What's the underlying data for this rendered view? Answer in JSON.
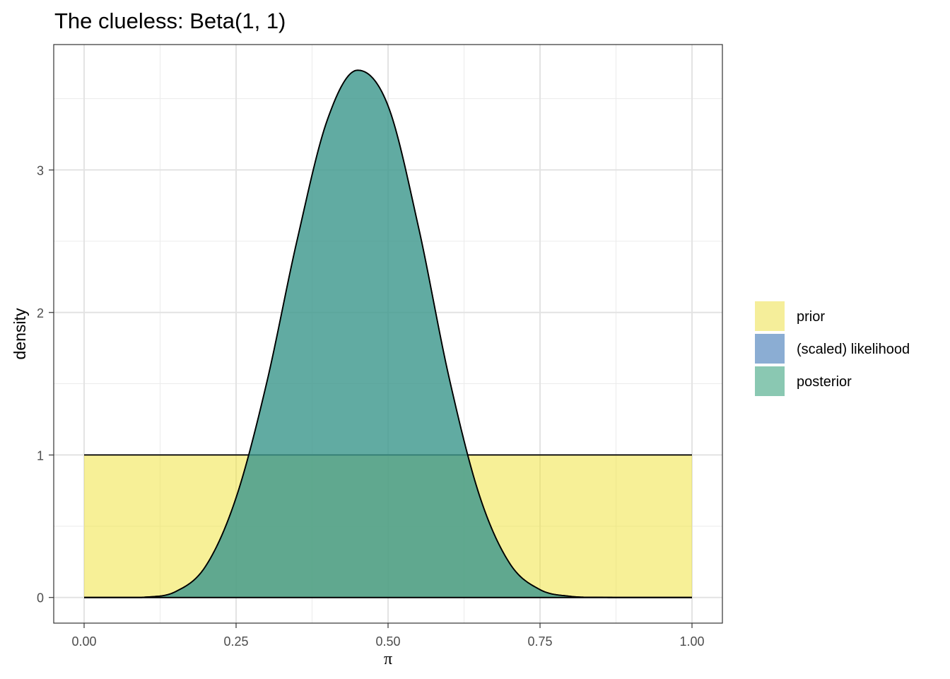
{
  "chart_data": {
    "type": "area",
    "title": "The clueless: Beta(1, 1)",
    "xlabel": "π",
    "ylabel": "density",
    "xlim": [
      -0.05,
      1.05
    ],
    "ylim": [
      -0.18,
      3.88
    ],
    "x_ticks": [
      0,
      0.25,
      0.5,
      0.75,
      1
    ],
    "x_tick_labels": [
      "0.00",
      "0.25",
      "0.50",
      "0.75",
      "1.00"
    ],
    "y_ticks": [
      0,
      1,
      2,
      3
    ],
    "y_tick_labels": [
      "0",
      "1",
      "2",
      "3"
    ],
    "grid": true,
    "legend_position": "right",
    "legend": [
      {
        "label": "prior",
        "color": "#f5ee9a"
      },
      {
        "label": "(scaled) likelihood",
        "color": "#8badd3"
      },
      {
        "label": "posterior",
        "color": "#8ac8b2"
      }
    ],
    "series": [
      {
        "name": "prior",
        "distribution": "Beta(1, 1)",
        "fill": "#f0e442",
        "opacity": 0.55,
        "x": [
          0,
          1
        ],
        "y": [
          1,
          1
        ]
      },
      {
        "name": "(scaled) likelihood",
        "fill": "#4a7fbf",
        "opacity": 0.55,
        "x": [
          0,
          0.05,
          0.1,
          0.15,
          0.2,
          0.25,
          0.3,
          0.35,
          0.4,
          0.45,
          0.5,
          0.55,
          0.6,
          0.65,
          0.7,
          0.75,
          0.8,
          0.85,
          0.9,
          0.95,
          1
        ],
        "y": [
          0,
          0,
          0.002,
          0.04,
          0.22,
          0.7,
          1.5,
          2.5,
          3.35,
          3.7,
          3.45,
          2.6,
          1.55,
          0.72,
          0.24,
          0.055,
          0.008,
          0.001,
          0,
          0,
          0
        ]
      },
      {
        "name": "posterior",
        "fill": "#3aa17c",
        "opacity": 0.6,
        "x": [
          0,
          0.05,
          0.1,
          0.15,
          0.2,
          0.25,
          0.3,
          0.35,
          0.4,
          0.45,
          0.5,
          0.55,
          0.6,
          0.65,
          0.7,
          0.75,
          0.8,
          0.85,
          0.9,
          0.95,
          1
        ],
        "y": [
          0,
          0,
          0.002,
          0.04,
          0.22,
          0.7,
          1.5,
          2.5,
          3.35,
          3.7,
          3.45,
          2.6,
          1.55,
          0.72,
          0.24,
          0.055,
          0.008,
          0.001,
          0,
          0,
          0
        ]
      }
    ]
  }
}
